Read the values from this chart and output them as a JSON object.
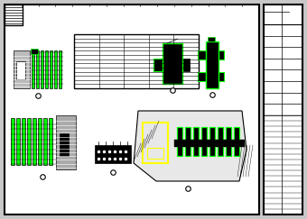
{
  "bg_color": "#f0f0f0",
  "border_color": "#000000",
  "line_color": "#000000",
  "green_color": "#00ff00",
  "yellow_color": "#ffff00",
  "gray_color": "#808080",
  "fig_bg": "#c8c8c8",
  "main_bg": "#ffffff"
}
